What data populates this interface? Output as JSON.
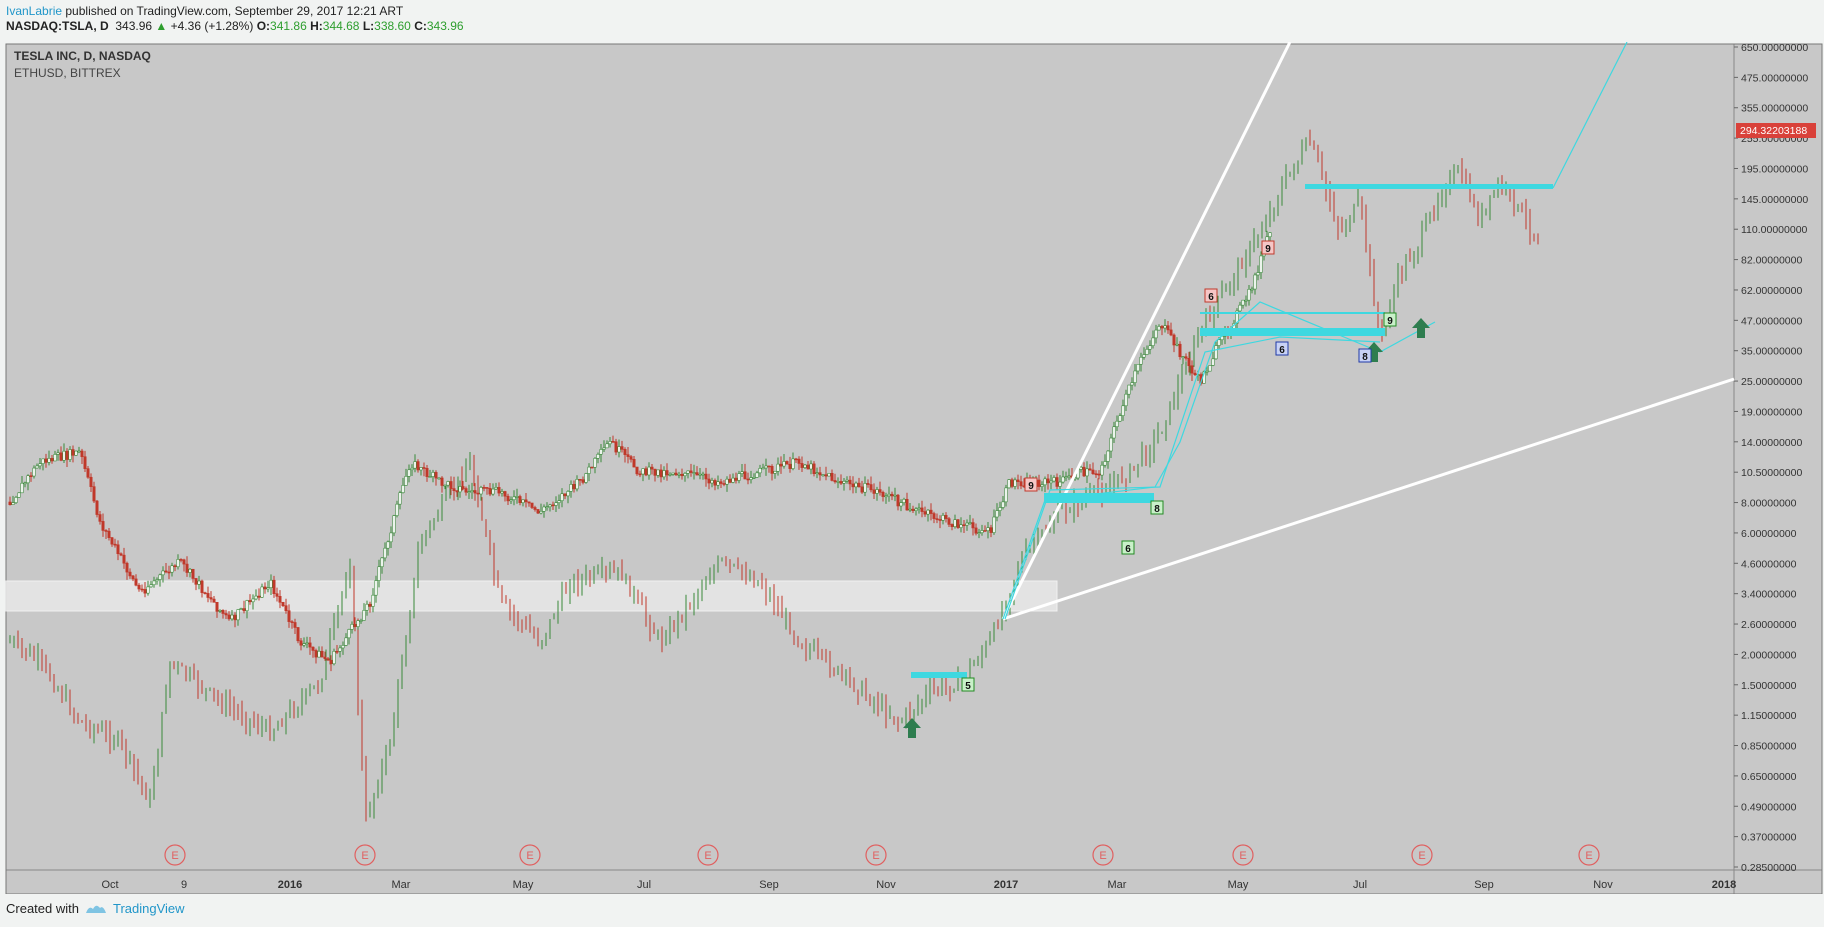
{
  "header": {
    "author": "IvanLabrie",
    "published": " published on TradingView.com, September 29, 2017 12:21 ART",
    "symbol": "NASDAQ:TSLA, D",
    "last": "343.96",
    "change": "+4.36 (+1.28%)",
    "o_label": "O:",
    "o": "341.86",
    "h_label": "H:",
    "h": "344.68",
    "l_label": "L:",
    "l": "338.60",
    "c_label": "C:",
    "c": "343.96"
  },
  "legend": {
    "main": "TESLA INC, D, NASDAQ",
    "overlay": "ETHUSD, BITTREX"
  },
  "footer": {
    "created": "Created with",
    "brand": "TradingView"
  },
  "colors": {
    "plot_bg": "#c8c8c8",
    "up": "#3a8a3a",
    "down": "#c0392b",
    "cyan": "#3ed8e0",
    "price_tag": "#d9413a"
  },
  "chart_data": {
    "type": "candlestick",
    "y_scale": "log",
    "y_ticks": [
      "650.00000000",
      "475.00000000",
      "355.00000000",
      "255.00000000",
      "195.00000000",
      "145.00000000",
      "110.00000000",
      "82.00000000",
      "62.00000000",
      "47.00000000",
      "35.00000000",
      "25.00000000",
      "19.00000000",
      "14.00000000",
      "10.50000000",
      "8.00000000",
      "6.00000000",
      "4.60000000",
      "3.40000000",
      "2.60000000",
      "2.00000000",
      "1.50000000",
      "1.15000000",
      "0.85000000",
      "0.65000000",
      "0.49000000",
      "0.37000000",
      "0.28500000"
    ],
    "x_ticks": [
      "Oct",
      "9",
      "2016",
      "Mar",
      "May",
      "Jul",
      "Sep",
      "Nov",
      "2017",
      "Mar",
      "May",
      "Jul",
      "Sep",
      "Nov",
      "2018"
    ],
    "last_price_tag": "294.32203188",
    "earnings_marker": "E",
    "earnings_count": 9,
    "count_labels": [
      {
        "text": "6",
        "color": "red"
      },
      {
        "text": "9",
        "color": "red"
      },
      {
        "text": "9",
        "color": "red"
      },
      {
        "text": "6",
        "color": "blue"
      },
      {
        "text": "8",
        "color": "blue"
      },
      {
        "text": "9",
        "color": "green"
      },
      {
        "text": "8",
        "color": "green"
      },
      {
        "text": "6",
        "color": "green"
      },
      {
        "text": "5",
        "color": "green"
      }
    ],
    "series": [
      {
        "symbol": "TSLA",
        "role": "main"
      },
      {
        "symbol": "ETHUSD",
        "role": "overlay"
      }
    ]
  }
}
